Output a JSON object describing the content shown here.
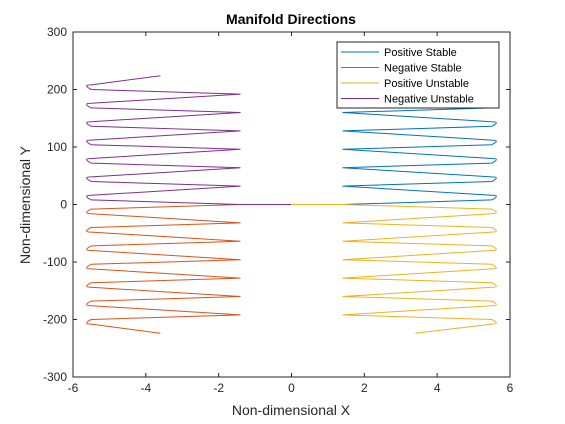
{
  "chart_data": {
    "type": "line",
    "title": "Manifold Directions",
    "xlabel": "Non-dimensional X",
    "ylabel": "Non-dimensional Y",
    "xlim": [
      -6,
      6
    ],
    "ylim": [
      -300,
      300
    ],
    "xticks": [
      -6,
      -4,
      -2,
      0,
      2,
      4,
      6
    ],
    "yticks": [
      -300,
      -200,
      -100,
      0,
      100,
      200,
      300
    ],
    "legend_position": "top-right",
    "grid": false,
    "series": [
      {
        "name": "Positive Stable",
        "color": "#0072BD",
        "side": 1,
        "y0": 0,
        "dir": 1,
        "end": 1.4
      },
      {
        "name": "Negative Stable",
        "color": "#D95319",
        "side": -1,
        "y0": 0,
        "dir": -1,
        "end": -3.6
      },
      {
        "name": "Positive Unstable",
        "color": "#EDB120",
        "side": 1,
        "y0": 0,
        "dir": -1,
        "end": 3.4
      },
      {
        "name": "Negative Unstable",
        "color": "#7E2F8E",
        "side": -1,
        "y0": 0,
        "dir": 1,
        "end": -3.6
      }
    ]
  }
}
